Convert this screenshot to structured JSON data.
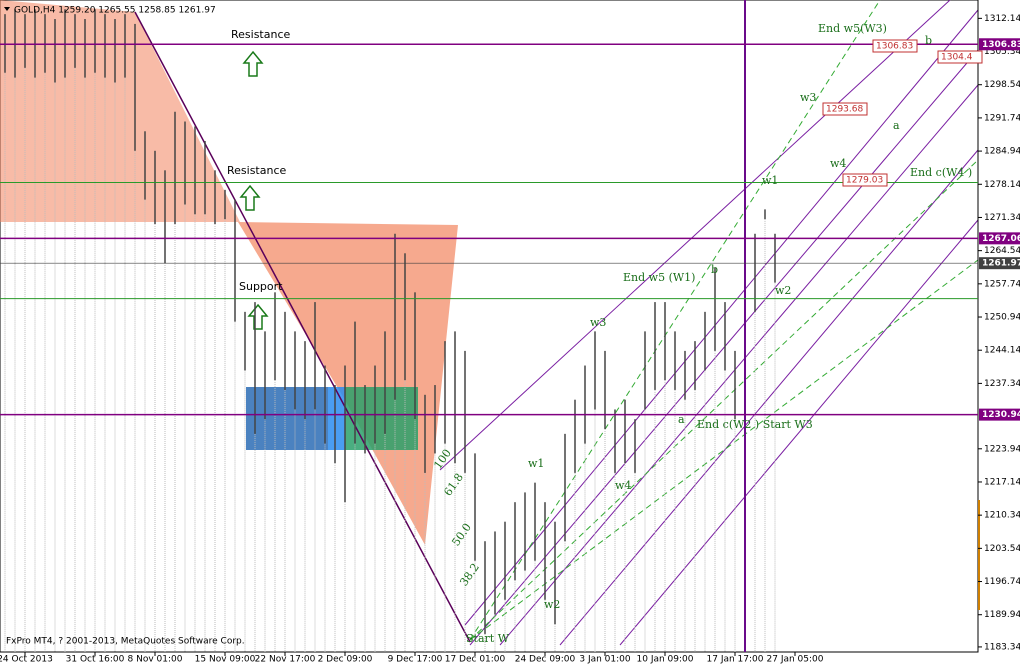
{
  "header": "GOLD,H4  1259.20 1265.55 1258.85 1261.97",
  "chart_data": {
    "type": "bar",
    "ylim": [
      1182.3,
      1315.9
    ],
    "yticks": [
      1312.14,
      1305.34,
      1298.54,
      1291.74,
      1284.94,
      1278.14,
      1271.34,
      1264.54,
      1257.74,
      1250.94,
      1244.14,
      1237.34,
      1223.94,
      1217.14,
      1210.34,
      1203.54,
      1196.74,
      1189.94,
      1183.34
    ],
    "xticks": [
      {
        "value": 2,
        "label": "24 Oct 2013"
      },
      {
        "value": 9,
        "label": "31 Oct 16:00"
      },
      {
        "value": 15,
        "label": "8 Nov 01:00"
      },
      {
        "value": 22,
        "label": "15 Nov 09:00"
      },
      {
        "value": 28,
        "label": "22 Nov 17:00"
      },
      {
        "value": 34,
        "label": "2 Dec 09:00"
      },
      {
        "value": 41,
        "label": "9 Dec 17:00"
      },
      {
        "value": 47,
        "label": "17 Dec 01:00"
      },
      {
        "value": 54,
        "label": "24 Dec 09:00"
      },
      {
        "value": 60,
        "label": "3 Jan 01:00"
      },
      {
        "value": 66,
        "label": "10 Jan 09:00"
      },
      {
        "value": 73,
        "label": "17 Jan 17:00"
      },
      {
        "value": 79,
        "label": "27 Jan 05:00"
      }
    ],
    "high": [
      1313,
      1314,
      1313,
      1314,
      1313,
      1312,
      1314,
      1313,
      1312,
      1314,
      1313,
      1312,
      1313,
      1311,
      1289,
      1285,
      1281,
      1293,
      1291,
      1290,
      1287,
      1281,
      1277,
      1275,
      1252,
      1254,
      1248,
      1256,
      1252,
      1248,
      1246,
      1254,
      1241,
      1237,
      1241,
      1250,
      1237,
      1241,
      1248,
      1268,
      1264,
      1256,
      1235,
      1237,
      1246,
      1248,
      1244,
      1223,
      1205,
      1207,
      1209,
      1213,
      1215,
      1217,
      1213,
      1209,
      1227,
      1234,
      1241,
      1248,
      1244,
      1232,
      1234,
      1230,
      1248,
      1254,
      1254,
      1248,
      1244,
      1246,
      1252,
      1261,
      1254,
      1244,
      1264,
      1268,
      1273,
      1268
    ],
    "low": [
      1301,
      1300,
      1302,
      1300,
      1301,
      1299,
      1300,
      1302,
      1300,
      1301,
      1300,
      1299,
      1300,
      1285,
      1275,
      1270,
      1262,
      1270,
      1274,
      1272,
      1272,
      1270,
      1271,
      1250,
      1240,
      1227,
      1230,
      1238,
      1236,
      1232,
      1230,
      1232,
      1225,
      1221,
      1213,
      1225,
      1223,
      1225,
      1227,
      1234,
      1238,
      1230,
      1219,
      1223,
      1225,
      1221,
      1219,
      1201,
      1186,
      1190,
      1193,
      1197,
      1199,
      1201,
      1193,
      1188,
      1205,
      1219,
      1225,
      1232,
      1228,
      1219,
      1221,
      1219,
      1232,
      1236,
      1238,
      1236,
      1234,
      1236,
      1240,
      1244,
      1240,
      1230,
      1228,
      1252,
      1271,
      1258
    ],
    "vline": 74,
    "levels": [
      {
        "value": 1306.83,
        "label": "1306.83",
        "color": "#800080"
      },
      {
        "value": 1267.06,
        "label": "1267.06",
        "color": "#800080"
      },
      {
        "value": 1261.97,
        "label": "1261.97",
        "color": "#404040"
      },
      {
        "value": 1230.94,
        "label": "1230.94",
        "color": "#800080"
      }
    ],
    "green_lines": [
      1278.5,
      1254.7
    ],
    "annotations": [
      "Resistance",
      "Resistance",
      "Support",
      "End w5(W3)",
      "w3",
      "a",
      "w4",
      "End c(W4 )",
      "w1",
      "b",
      "End w5 (W1)",
      "w2",
      "w3",
      "a",
      "End c(W2 ) Start W3",
      "w1",
      "w4",
      "w2",
      "Start W",
      "b",
      "100",
      "61.8",
      "50.0",
      "38.2"
    ],
    "price_boxes": [
      "1306.83",
      "1304.4",
      "1293.68",
      "1279.03"
    ],
    "copyright": "FxPro MT4, ? 2001-2013, MetaQuotes Software Corp."
  }
}
